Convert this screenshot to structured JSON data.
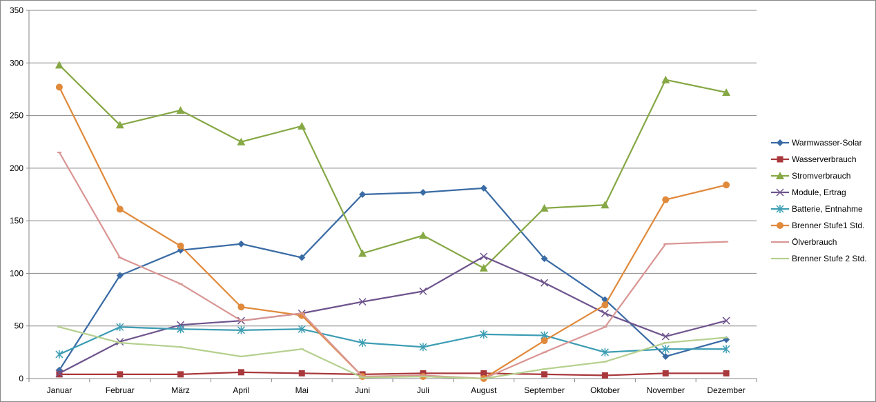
{
  "chart_data": {
    "type": "line",
    "title": "",
    "xlabel": "",
    "ylabel": "",
    "ylim": [
      0,
      350
    ],
    "yticks": [
      "0",
      "50",
      "100",
      "150",
      "200",
      "250",
      "300",
      "350"
    ],
    "grid": true,
    "legend_position": "right",
    "categories": [
      "Januar",
      "Februar",
      "März",
      "April",
      "Mai",
      "Juni",
      "Juli",
      "August",
      "September",
      "Oktober",
      "November",
      "Dezember"
    ],
    "series": [
      {
        "name": "Warmwasser-Solar",
        "color": "#3A6BA5",
        "marker": "diamond",
        "values": [
          8,
          98,
          122,
          128,
          115,
          175,
          177,
          181,
          114,
          75,
          21,
          37
        ]
      },
      {
        "name": "Wasserverbrauch",
        "color": "#A8383B",
        "marker": "square",
        "values": [
          4,
          4,
          4,
          6,
          5,
          4,
          5,
          5,
          4,
          3,
          5,
          5
        ]
      },
      {
        "name": "Stromverbrauch",
        "color": "#86A845",
        "marker": "triangle",
        "values": [
          298,
          241,
          255,
          225,
          240,
          119,
          136,
          105,
          162,
          165,
          284,
          272
        ]
      },
      {
        "name": "Module, Ertrag",
        "color": "#6E548D",
        "marker": "x",
        "values": [
          5,
          35,
          51,
          55,
          62,
          73,
          83,
          116,
          91,
          62,
          40,
          55
        ]
      },
      {
        "name": "Batterie, Entnahme",
        "color": "#3C9DB4",
        "marker": "star",
        "values": [
          23,
          49,
          47,
          46,
          47,
          34,
          30,
          42,
          41,
          25,
          28,
          28
        ]
      },
      {
        "name": "Brenner Stufe1 Std.",
        "color": "#E08A3C",
        "marker": "circle",
        "values": [
          277,
          161,
          126,
          68,
          60,
          2,
          2,
          0,
          36,
          70,
          170,
          184
        ]
      },
      {
        "name": "Ölverbrauch",
        "color": "#D99694",
        "marker": "dash",
        "values": [
          215,
          115,
          90,
          55,
          62,
          2,
          3,
          0,
          25,
          49,
          128,
          130
        ]
      },
      {
        "name": "Brenner Stufe 2 Std.",
        "color": "#B6D08F",
        "marker": "dash",
        "values": [
          49,
          34,
          30,
          21,
          28,
          1,
          2,
          0,
          9,
          16,
          34,
          39
        ]
      }
    ]
  }
}
